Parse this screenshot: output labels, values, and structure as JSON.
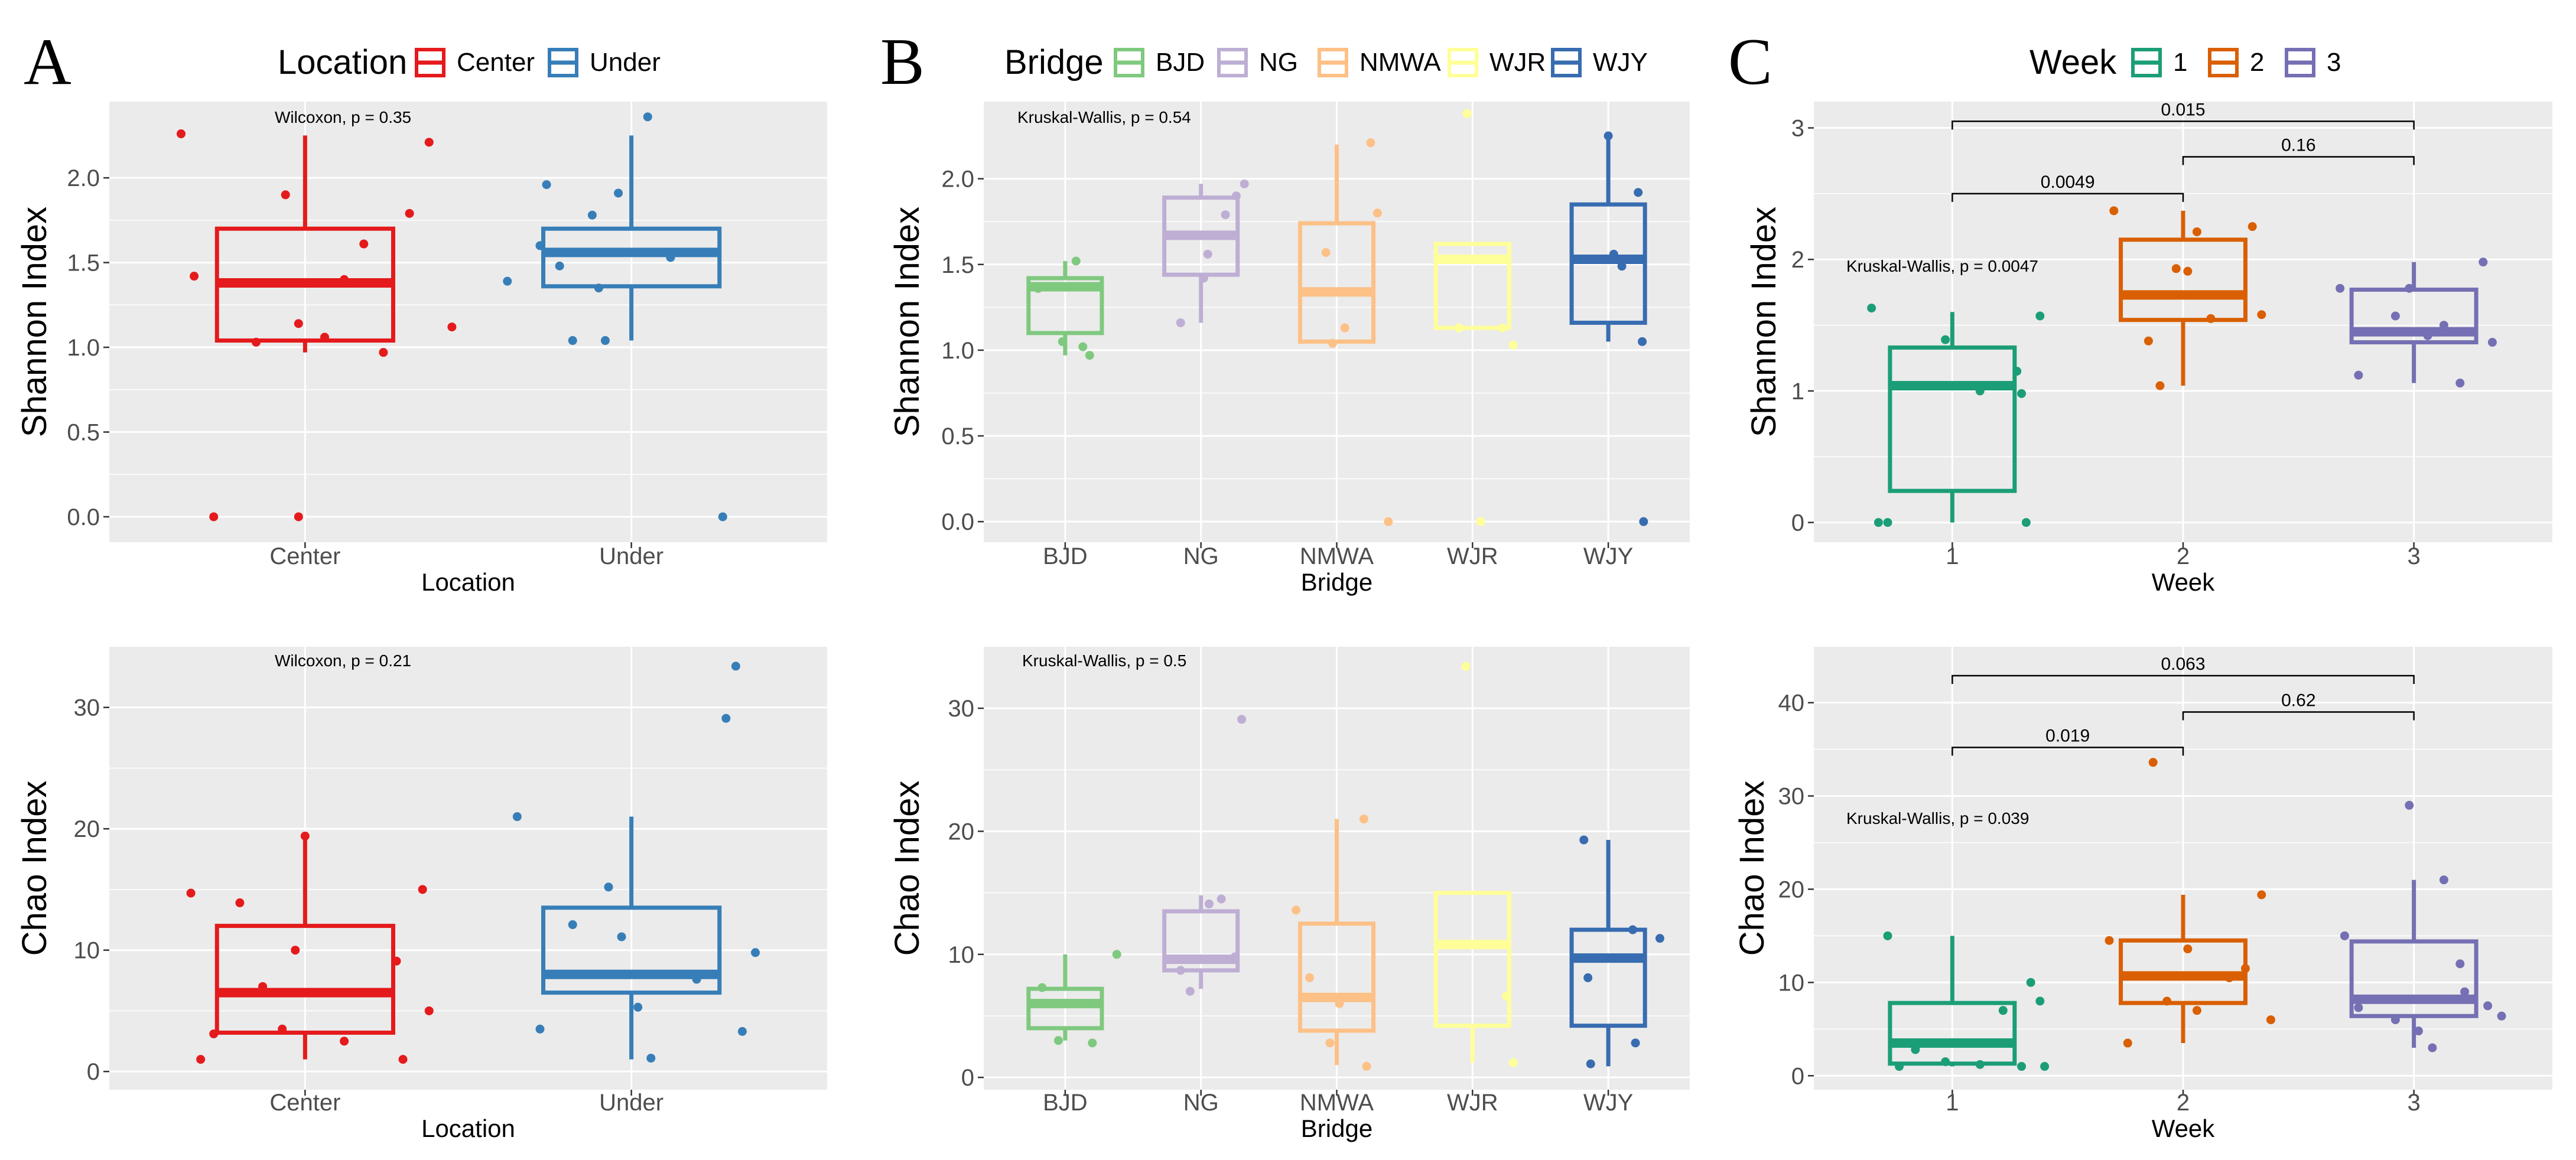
{
  "panel_labels": [
    "A",
    "B",
    "C"
  ],
  "colors": {
    "panel_bg": "#ebebeb",
    "grid": "#ffffff",
    "Center": "#e41a1c",
    "Under": "#377eb8",
    "BJD": "#7fc97f",
    "NG": "#beaed4",
    "NMWA": "#fdc086",
    "WJR": "#ffff99",
    "WJY": "#386cb0",
    "week_1": "#1b9e77",
    "week_2": "#d95f02",
    "week_3": "#7570b3"
  },
  "legends": {
    "A": {
      "title": "Location",
      "items": [
        "Center",
        "Under"
      ]
    },
    "B": {
      "title": "Bridge",
      "items": [
        "BJD",
        "NG",
        "NMWA",
        "WJR",
        "WJY"
      ]
    },
    "C": {
      "title": "Week",
      "items": [
        "1",
        "2",
        "3"
      ]
    }
  },
  "chart_data": [
    {
      "id": "A_shannon",
      "type": "box",
      "panel": "A",
      "xlabel": "Location",
      "ylabel": "Shannon Index",
      "ylim": [
        -0.15,
        2.45
      ],
      "yticks": [
        0,
        0.5,
        1,
        1.5,
        2
      ],
      "ytick_labels": [
        "0.0",
        "0.5",
        "1.0",
        "1.5",
        "2.0"
      ],
      "annotation": "Wilcoxon, p = 0.35",
      "groups": [
        {
          "name": "Center",
          "color_key": "Center",
          "min": 0.97,
          "q1": 1.04,
          "median": 1.38,
          "q3": 1.7,
          "max": 2.25,
          "points": [
            [
              0.62,
              2.26
            ],
            [
              0.66,
              1.42
            ],
            [
              0.85,
              1.03
            ],
            [
              0.94,
              1.9
            ],
            [
              0.98,
              1.14
            ],
            [
              1.06,
              1.06
            ],
            [
              1.12,
              1.4
            ],
            [
              1.18,
              1.61
            ],
            [
              1.24,
              0.97
            ],
            [
              1.32,
              1.79
            ],
            [
              1.38,
              2.21
            ],
            [
              1.45,
              1.12
            ],
            [
              0.72,
              0.0
            ],
            [
              0.98,
              0.0
            ]
          ]
        },
        {
          "name": "Under",
          "color_key": "Under",
          "min": 1.04,
          "q1": 1.36,
          "median": 1.56,
          "q3": 1.7,
          "max": 2.25,
          "points": [
            [
              1.62,
              1.39
            ],
            [
              1.72,
              1.6
            ],
            [
              1.74,
              1.96
            ],
            [
              1.78,
              1.48
            ],
            [
              1.82,
              1.04
            ],
            [
              1.88,
              1.78
            ],
            [
              1.9,
              1.35
            ],
            [
              1.96,
              1.91
            ],
            [
              2.05,
              2.36
            ],
            [
              2.12,
              1.53
            ],
            [
              1.92,
              1.04
            ],
            [
              2.28,
              0.0
            ]
          ]
        }
      ]
    },
    {
      "id": "A_chao",
      "type": "box",
      "panel": "A",
      "xlabel": "Location",
      "ylabel": "Chao Index",
      "ylim": [
        -1.5,
        35
      ],
      "yticks": [
        0,
        10,
        20,
        30
      ],
      "ytick_labels": [
        "0",
        "10",
        "20",
        "30"
      ],
      "annotation": "Wilcoxon, p = 0.21",
      "groups": [
        {
          "name": "Center",
          "color_key": "Center",
          "min": 1,
          "q1": 3.2,
          "median": 6.5,
          "q3": 12,
          "max": 19.4,
          "points": [
            [
              0.65,
              14.7
            ],
            [
              0.68,
              1.0
            ],
            [
              0.72,
              3.1
            ],
            [
              0.8,
              13.9
            ],
            [
              0.87,
              7.0
            ],
            [
              0.93,
              3.5
            ],
            [
              0.97,
              10.0
            ],
            [
              1.0,
              19.4
            ],
            [
              1.12,
              2.5
            ],
            [
              1.28,
              9.1
            ],
            [
              1.3,
              1.0
            ],
            [
              1.36,
              15.0
            ],
            [
              1.38,
              5.0
            ]
          ]
        },
        {
          "name": "Under",
          "color_key": "Under",
          "min": 1,
          "q1": 6.5,
          "median": 8,
          "q3": 13.5,
          "max": 21,
          "points": [
            [
              1.65,
              21.0
            ],
            [
              1.72,
              3.5
            ],
            [
              1.82,
              12.1
            ],
            [
              1.93,
              15.2
            ],
            [
              1.97,
              11.1
            ],
            [
              2.02,
              5.3
            ],
            [
              2.06,
              1.1
            ],
            [
              2.2,
              7.6
            ],
            [
              2.29,
              29.1
            ],
            [
              2.32,
              33.4
            ],
            [
              2.34,
              3.3
            ],
            [
              2.38,
              9.8
            ]
          ]
        }
      ]
    },
    {
      "id": "B_shannon",
      "type": "box",
      "panel": "B",
      "xlabel": "Bridge",
      "ylabel": "Shannon Index",
      "ylim": [
        -0.12,
        2.45
      ],
      "yticks": [
        0,
        0.5,
        1,
        1.5,
        2
      ],
      "ytick_labels": [
        "0.0",
        "0.5",
        "1.0",
        "1.5",
        "2.0"
      ],
      "annotation": "Kruskal-Wallis, p = 0.54",
      "groups": [
        {
          "name": "BJD",
          "color_key": "BJD",
          "min": 0.97,
          "q1": 1.1,
          "median": 1.37,
          "q3": 1.42,
          "max": 1.52,
          "points": [
            [
              0.8,
              1.36
            ],
            [
              0.98,
              1.05
            ],
            [
              1.08,
              1.52
            ],
            [
              1.13,
              1.02
            ],
            [
              1.18,
              0.97
            ]
          ]
        },
        {
          "name": "NG",
          "color_key": "NG",
          "min": 1.16,
          "q1": 1.44,
          "median": 1.67,
          "q3": 1.89,
          "max": 1.97,
          "points": [
            [
              1.85,
              1.16
            ],
            [
              2.02,
              1.42
            ],
            [
              2.05,
              1.56
            ],
            [
              2.18,
              1.79
            ],
            [
              2.26,
              1.9
            ],
            [
              2.32,
              1.97
            ]
          ]
        },
        {
          "name": "NMWA",
          "color_key": "NMWA",
          "min": 1.04,
          "q1": 1.05,
          "median": 1.34,
          "q3": 1.74,
          "max": 2.2,
          "points": [
            [
              2.92,
              1.57
            ],
            [
              2.97,
              1.04
            ],
            [
              3.06,
              1.13
            ],
            [
              3.25,
              2.21
            ],
            [
              3.3,
              1.8
            ],
            [
              3.38,
              0.0
            ]
          ]
        },
        {
          "name": "WJR",
          "color_key": "WJR",
          "min": 1.13,
          "q1": 1.13,
          "median": 1.53,
          "q3": 1.62,
          "max": 1.62,
          "points": [
            [
              3.9,
              1.13
            ],
            [
              3.96,
              2.38
            ],
            [
              4.22,
              1.13
            ],
            [
              4.3,
              1.03
            ],
            [
              4.06,
              0.0
            ]
          ]
        },
        {
          "name": "WJY",
          "color_key": "WJY",
          "min": 1.05,
          "q1": 1.16,
          "median": 1.53,
          "q3": 1.85,
          "max": 2.25,
          "points": [
            [
              5.0,
              2.25
            ],
            [
              5.04,
              1.56
            ],
            [
              5.1,
              1.49
            ],
            [
              5.22,
              1.92
            ],
            [
              5.25,
              1.05
            ],
            [
              5.26,
              0.0
            ]
          ]
        }
      ]
    },
    {
      "id": "B_chao",
      "type": "box",
      "panel": "B",
      "xlabel": "Bridge",
      "ylabel": "Chao Index",
      "ylim": [
        -1,
        35
      ],
      "yticks": [
        0,
        10,
        20,
        30
      ],
      "ytick_labels": [
        "0",
        "10",
        "20",
        "30"
      ],
      "annotation": "Kruskal-Wallis, p = 0.5",
      "groups": [
        {
          "name": "BJD",
          "color_key": "BJD",
          "min": 3,
          "q1": 4,
          "median": 6,
          "q3": 7.2,
          "max": 10,
          "points": [
            [
              0.83,
              7.3
            ],
            [
              0.95,
              3.0
            ],
            [
              1.02,
              6.0
            ],
            [
              1.2,
              2.8
            ],
            [
              1.38,
              10.0
            ]
          ]
        },
        {
          "name": "NG",
          "color_key": "NG",
          "min": 7.2,
          "q1": 8.7,
          "median": 9.6,
          "q3": 13.5,
          "max": 14.8,
          "points": [
            [
              1.85,
              8.7
            ],
            [
              1.92,
              7.0
            ],
            [
              2.06,
              14.1
            ],
            [
              2.15,
              14.5
            ],
            [
              2.25,
              9.8
            ],
            [
              2.3,
              29.1
            ]
          ]
        },
        {
          "name": "NMWA",
          "color_key": "NMWA",
          "min": 1,
          "q1": 3.8,
          "median": 6.5,
          "q3": 12.5,
          "max": 21,
          "points": [
            [
              2.7,
              13.6
            ],
            [
              2.8,
              8.1
            ],
            [
              2.95,
              2.8
            ],
            [
              3.02,
              6.0
            ],
            [
              3.2,
              21.0
            ],
            [
              3.22,
              0.9
            ]
          ]
        },
        {
          "name": "WJR",
          "color_key": "WJR",
          "min": 1.2,
          "q1": 4.2,
          "median": 10.8,
          "q3": 15,
          "max": 15,
          "points": [
            [
              3.95,
              33.4
            ],
            [
              4.25,
              6.6
            ],
            [
              4.3,
              1.2
            ]
          ]
        },
        {
          "name": "WJY",
          "color_key": "WJY",
          "min": 0.9,
          "q1": 4.2,
          "median": 9.7,
          "q3": 12,
          "max": 19.3,
          "points": [
            [
              4.82,
              19.3
            ],
            [
              4.85,
              8.1
            ],
            [
              4.87,
              1.1
            ],
            [
              5.18,
              12.0
            ],
            [
              5.2,
              2.8
            ],
            [
              5.38,
              11.3
            ]
          ]
        }
      ]
    },
    {
      "id": "C_shannon",
      "type": "box",
      "panel": "C",
      "xlabel": "Week",
      "ylabel": "Shannon Index",
      "ylim": [
        -0.15,
        3.2
      ],
      "yticks": [
        0,
        1,
        2,
        3
      ],
      "ytick_labels": [
        "0",
        "1",
        "2",
        "3"
      ],
      "annotation": "Kruskal-Wallis, p = 0.0047",
      "brackets": [
        {
          "x1": 1,
          "x2": 3,
          "y": 3.05,
          "label": "0.015"
        },
        {
          "x1": 1,
          "x2": 2,
          "y": 2.5,
          "label": "0.0049"
        },
        {
          "x1": 2,
          "x2": 3,
          "y": 2.78,
          "label": "0.16"
        }
      ],
      "groups": [
        {
          "name": "1",
          "color_key": "week_1",
          "min": 0.0,
          "q1": 0.24,
          "median": 1.04,
          "q3": 1.33,
          "max": 1.6,
          "points": [
            [
              0.65,
              1.63
            ],
            [
              0.97,
              1.39
            ],
            [
              0.68,
              0.0
            ],
            [
              0.72,
              0.0
            ],
            [
              1.12,
              1.0
            ],
            [
              1.28,
              1.15
            ],
            [
              1.3,
              0.98
            ],
            [
              1.32,
              0.0
            ],
            [
              1.38,
              1.57
            ]
          ]
        },
        {
          "name": "2",
          "color_key": "week_2",
          "min": 1.04,
          "q1": 1.54,
          "median": 1.73,
          "q3": 2.15,
          "max": 2.37,
          "points": [
            [
              1.7,
              2.37
            ],
            [
              1.85,
              1.38
            ],
            [
              1.9,
              1.04
            ],
            [
              1.97,
              1.93
            ],
            [
              2.02,
              1.91
            ],
            [
              2.06,
              2.21
            ],
            [
              2.12,
              1.55
            ],
            [
              2.3,
              2.25
            ],
            [
              2.34,
              1.58
            ]
          ]
        },
        {
          "name": "3",
          "color_key": "week_3",
          "min": 1.06,
          "q1": 1.37,
          "median": 1.45,
          "q3": 1.77,
          "max": 1.98,
          "points": [
            [
              2.68,
              1.78
            ],
            [
              2.76,
              1.12
            ],
            [
              2.92,
              1.57
            ],
            [
              2.98,
              1.78
            ],
            [
              3.06,
              1.42
            ],
            [
              3.13,
              1.5
            ],
            [
              3.2,
              1.06
            ],
            [
              3.3,
              1.98
            ],
            [
              3.34,
              1.37
            ]
          ]
        }
      ]
    },
    {
      "id": "C_chao",
      "type": "box",
      "panel": "C",
      "xlabel": "Week",
      "ylabel": "Chao Index",
      "ylim": [
        -1.5,
        46
      ],
      "yticks": [
        0,
        10,
        20,
        30,
        40
      ],
      "ytick_labels": [
        "0",
        "10",
        "20",
        "30",
        "40"
      ],
      "annotation": "Kruskal-Wallis, p = 0.039",
      "brackets": [
        {
          "x1": 1,
          "x2": 3,
          "y": 42.9,
          "label": "0.063"
        },
        {
          "x1": 1,
          "x2": 2,
          "y": 35.2,
          "label": "0.019"
        },
        {
          "x1": 2,
          "x2": 3,
          "y": 39.0,
          "label": "0.62"
        }
      ],
      "groups": [
        {
          "name": "1",
          "color_key": "week_1",
          "min": 1.0,
          "q1": 1.3,
          "median": 3.5,
          "q3": 7.8,
          "max": 15.0,
          "points": [
            [
              0.72,
              15.0
            ],
            [
              0.77,
              1.0
            ],
            [
              0.84,
              2.8
            ],
            [
              0.97,
              1.5
            ],
            [
              1.12,
              1.2
            ],
            [
              1.22,
              7.0
            ],
            [
              1.3,
              1.0
            ],
            [
              1.34,
              10.0
            ],
            [
              1.38,
              8.0
            ],
            [
              1.4,
              1.0
            ]
          ]
        },
        {
          "name": "2",
          "color_key": "week_2",
          "min": 3.5,
          "q1": 7.8,
          "median": 10.7,
          "q3": 14.5,
          "max": 19.4,
          "points": [
            [
              1.68,
              14.5
            ],
            [
              1.76,
              3.5
            ],
            [
              1.87,
              33.6
            ],
            [
              1.93,
              8.0
            ],
            [
              2.02,
              13.6
            ],
            [
              2.06,
              7.0
            ],
            [
              2.2,
              10.5
            ],
            [
              2.27,
              11.5
            ],
            [
              2.34,
              19.4
            ],
            [
              2.38,
              6.0
            ]
          ]
        },
        {
          "name": "3",
          "color_key": "week_3",
          "min": 3.0,
          "q1": 6.4,
          "median": 8.2,
          "q3": 14.4,
          "max": 21.0,
          "points": [
            [
              2.7,
              15.0
            ],
            [
              2.76,
              7.3
            ],
            [
              2.92,
              6.0
            ],
            [
              2.98,
              29.0
            ],
            [
              3.02,
              4.8
            ],
            [
              3.08,
              3.0
            ],
            [
              3.13,
              21.0
            ],
            [
              3.2,
              12.0
            ],
            [
              3.22,
              9.0
            ],
            [
              3.32,
              7.5
            ],
            [
              3.38,
              6.4
            ]
          ]
        }
      ]
    }
  ]
}
